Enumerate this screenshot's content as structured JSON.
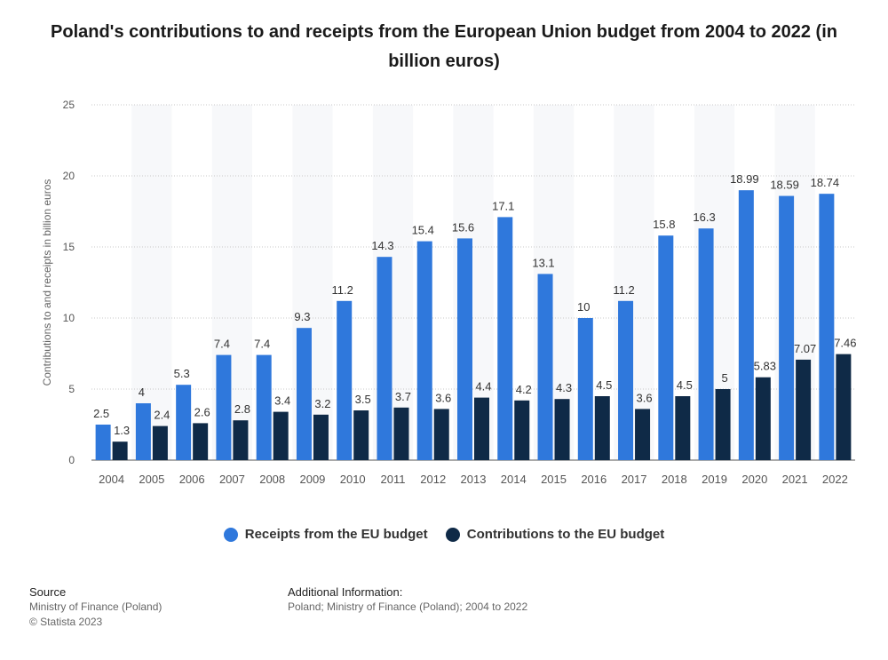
{
  "title": "Poland's contributions to and receipts from the European Union budget from 2004 to 2022 (in billion euros)",
  "chart_data": {
    "type": "bar",
    "title": "Poland's contributions to and receipts from the European Union budget from 2004 to 2022 (in billion euros)",
    "xlabel": "",
    "ylabel": "Contributions to and receipts in billion euros",
    "ylim": [
      0,
      25
    ],
    "yticks": [
      0,
      5,
      10,
      15,
      20,
      25
    ],
    "grid": true,
    "legend_position": "bottom",
    "categories": [
      "2004",
      "2005",
      "2006",
      "2007",
      "2008",
      "2009",
      "2010",
      "2011",
      "2012",
      "2013",
      "2014",
      "2015",
      "2016",
      "2017",
      "2018",
      "2019",
      "2020",
      "2021",
      "2022"
    ],
    "series": [
      {
        "name": "Receipts from the EU budget",
        "color": "#2f78dc",
        "values": [
          2.5,
          4,
          5.3,
          7.4,
          7.4,
          9.3,
          11.2,
          14.3,
          15.4,
          15.6,
          17.1,
          13.1,
          10,
          11.2,
          15.8,
          16.3,
          18.99,
          18.59,
          18.74
        ]
      },
      {
        "name": "Contributions to the EU budget",
        "color": "#0f2a47",
        "values": [
          1.3,
          2.4,
          2.6,
          2.8,
          3.4,
          3.2,
          3.5,
          3.7,
          3.6,
          4.4,
          4.2,
          4.3,
          4.5,
          3.6,
          4.5,
          5,
          5.83,
          7.07,
          7.46
        ]
      }
    ]
  },
  "legend": {
    "receipts": "Receipts from the EU budget",
    "contributions": "Contributions to the EU budget"
  },
  "footer": {
    "source_heading": "Source",
    "source_line1": "Ministry of Finance (Poland)",
    "source_line2": "© Statista 2023",
    "info_heading": "Additional Information:",
    "info_line1": "Poland; Ministry of Finance (Poland); 2004 to 2022"
  }
}
